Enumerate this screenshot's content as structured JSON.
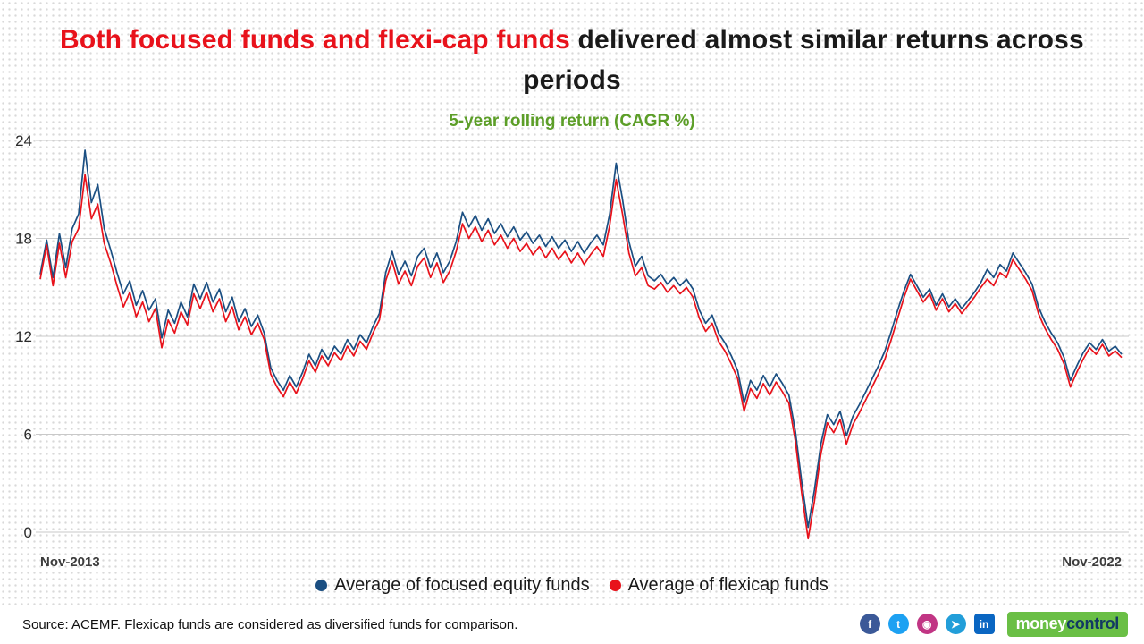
{
  "title": {
    "highlight": "Both focused funds and flexi-cap funds",
    "rest": " delivered almost similar returns across periods"
  },
  "subtitle": "5-year rolling return (CAGR %)",
  "axis": {
    "x_start_label": "Nov-2013",
    "x_end_label": "Nov-2022"
  },
  "legend": [
    {
      "label": "Average of focused equity funds",
      "color": "#1b4f82"
    },
    {
      "label": "Average of flexicap funds",
      "color": "#e8121b"
    }
  ],
  "footer": {
    "source": "Source: ACEMF. Flexicap funds are considered as diversified funds for comparison.",
    "social": [
      {
        "name": "facebook",
        "glyph": "f",
        "color": "#3b5998",
        "shape": "circle"
      },
      {
        "name": "twitter",
        "glyph": "t",
        "color": "#1da1f2",
        "shape": "circle"
      },
      {
        "name": "instagram",
        "glyph": "◉",
        "color": "#c13584",
        "shape": "circle"
      },
      {
        "name": "telegram",
        "glyph": "➤",
        "color": "#229ed9",
        "shape": "circle"
      },
      {
        "name": "linkedin",
        "glyph": "in",
        "color": "#0a66c2",
        "shape": "square"
      }
    ],
    "logo": {
      "money": "money",
      "control": "control"
    }
  },
  "chart_data": {
    "type": "line",
    "title": "5-year rolling return (CAGR %)",
    "xlabel": "",
    "ylabel": "CAGR %",
    "x_range": [
      "Nov-2013",
      "Nov-2022"
    ],
    "ylim": [
      0,
      24
    ],
    "y_ticks": [
      24,
      18,
      12,
      6,
      0
    ],
    "grid": true,
    "legend_position": "bottom",
    "series": [
      {
        "name": "Average of focused equity funds",
        "color": "#1b4f82",
        "values": [
          15.8,
          17.9,
          15.6,
          18.3,
          16.2,
          18.6,
          19.5,
          23.4,
          20.2,
          21.3,
          18.6,
          17.3,
          15.9,
          14.6,
          15.4,
          13.9,
          14.8,
          13.6,
          14.3,
          11.9,
          13.6,
          12.8,
          14.1,
          13.2,
          15.2,
          14.3,
          15.3,
          14.1,
          14.9,
          13.5,
          14.4,
          12.9,
          13.7,
          12.6,
          13.3,
          12.2,
          10.1,
          9.3,
          8.7,
          9.6,
          8.9,
          9.8,
          10.9,
          10.2,
          11.2,
          10.6,
          11.4,
          10.9,
          11.8,
          11.2,
          12.1,
          11.6,
          12.6,
          13.4,
          15.9,
          17.2,
          15.8,
          16.6,
          15.7,
          16.9,
          17.4,
          16.2,
          17.1,
          15.9,
          16.6,
          17.8,
          19.6,
          18.7,
          19.4,
          18.5,
          19.2,
          18.3,
          18.9,
          18.1,
          18.7,
          17.9,
          18.4,
          17.7,
          18.2,
          17.5,
          18.1,
          17.4,
          17.9,
          17.2,
          17.8,
          17.1,
          17.7,
          18.2,
          17.6,
          19.5,
          22.6,
          20.4,
          17.8,
          16.3,
          16.9,
          15.7,
          15.4,
          15.8,
          15.2,
          15.6,
          15.1,
          15.5,
          14.9,
          13.6,
          12.8,
          13.3,
          12.2,
          11.6,
          10.8,
          9.9,
          7.9,
          9.3,
          8.7,
          9.6,
          8.9,
          9.7,
          9.1,
          8.4,
          6.2,
          3.1,
          0.3,
          2.6,
          5.4,
          7.2,
          6.6,
          7.4,
          5.9,
          7.1,
          7.8,
          8.6,
          9.4,
          10.2,
          11.1,
          12.3,
          13.6,
          14.8,
          15.8,
          15.1,
          14.4,
          14.9,
          13.9,
          14.6,
          13.8,
          14.3,
          13.7,
          14.2,
          14.7,
          15.3,
          16.1,
          15.6,
          16.4,
          16.0,
          17.1,
          16.5,
          15.9,
          15.2,
          13.8,
          12.9,
          12.2,
          11.6,
          10.7,
          9.3,
          10.2,
          11.0,
          11.6,
          11.2,
          11.8,
          11.1,
          11.4,
          10.9
        ]
      },
      {
        "name": "Average of flexicap funds",
        "color": "#e8121b",
        "values": [
          15.5,
          17.6,
          15.1,
          17.7,
          15.6,
          17.8,
          18.6,
          21.9,
          19.2,
          20.1,
          17.7,
          16.5,
          15.1,
          13.8,
          14.7,
          13.2,
          14.1,
          12.9,
          13.7,
          11.3,
          13.0,
          12.2,
          13.5,
          12.7,
          14.6,
          13.7,
          14.7,
          13.5,
          14.3,
          12.9,
          13.8,
          12.4,
          13.2,
          12.1,
          12.8,
          11.8,
          9.7,
          8.9,
          8.3,
          9.2,
          8.5,
          9.4,
          10.5,
          9.8,
          10.8,
          10.2,
          11.0,
          10.5,
          11.4,
          10.8,
          11.7,
          11.2,
          12.2,
          13.0,
          15.4,
          16.6,
          15.2,
          16.0,
          15.1,
          16.3,
          16.8,
          15.6,
          16.5,
          15.3,
          16.0,
          17.2,
          18.9,
          18.0,
          18.7,
          17.8,
          18.5,
          17.6,
          18.2,
          17.4,
          18.0,
          17.2,
          17.7,
          17.0,
          17.5,
          16.8,
          17.4,
          16.7,
          17.2,
          16.5,
          17.1,
          16.4,
          17.0,
          17.5,
          16.9,
          18.8,
          21.6,
          19.5,
          17.1,
          15.7,
          16.2,
          15.1,
          14.9,
          15.3,
          14.7,
          15.1,
          14.6,
          15.0,
          14.4,
          13.1,
          12.3,
          12.8,
          11.7,
          11.1,
          10.3,
          9.4,
          7.4,
          8.8,
          8.2,
          9.1,
          8.4,
          9.2,
          8.6,
          7.9,
          5.6,
          2.4,
          -0.4,
          1.9,
          4.8,
          6.7,
          6.1,
          6.9,
          5.4,
          6.6,
          7.3,
          8.1,
          8.9,
          9.7,
          10.6,
          11.8,
          13.1,
          14.4,
          15.5,
          14.8,
          14.1,
          14.6,
          13.6,
          14.3,
          13.5,
          14.0,
          13.4,
          13.9,
          14.4,
          15.0,
          15.5,
          15.1,
          15.9,
          15.6,
          16.7,
          16.1,
          15.5,
          14.8,
          13.4,
          12.5,
          11.8,
          11.2,
          10.3,
          8.9,
          9.8,
          10.6,
          11.3,
          10.9,
          11.5,
          10.8,
          11.1,
          10.7
        ]
      }
    ]
  }
}
